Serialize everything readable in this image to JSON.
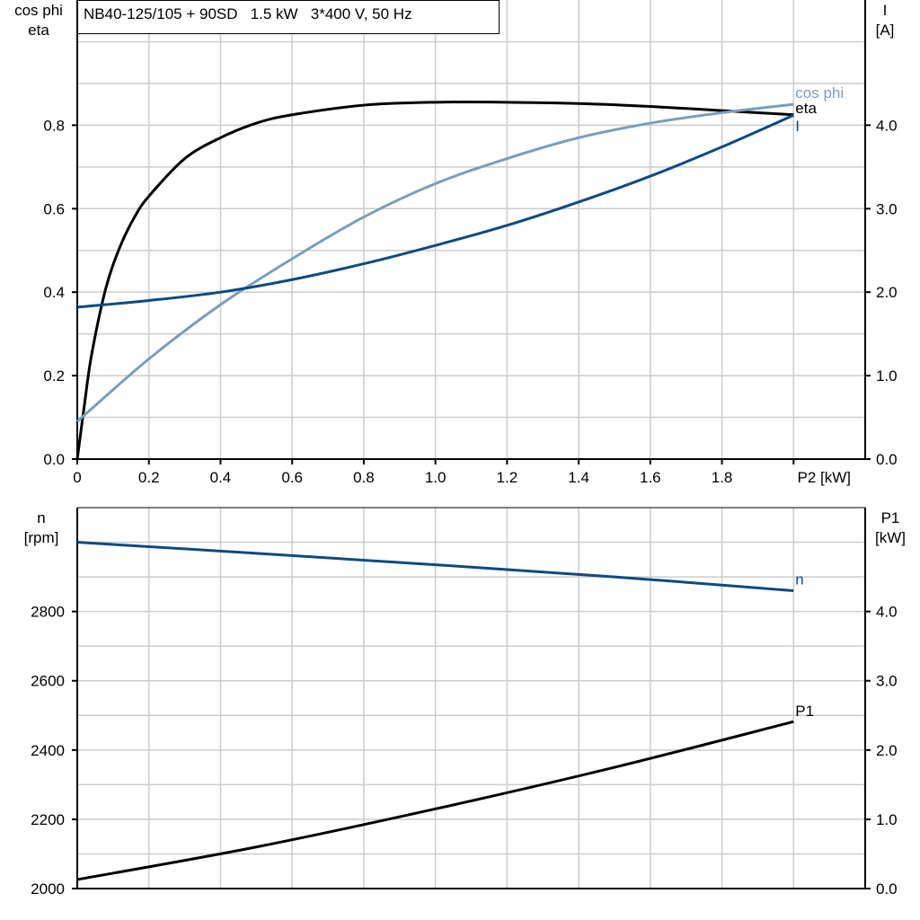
{
  "title": "NB40-125/105 + 90SD   1.5 kW   3*400 V, 50 Hz",
  "colors": {
    "eta": "#000000",
    "cos_phi": "#7b9dbd",
    "I": "#0f4a80",
    "n": "#0f4a80",
    "P1": "#000000",
    "grid": "#cccccc"
  },
  "chart_data": [
    {
      "type": "line",
      "xlabel": "P2 [kW]",
      "xlim": [
        0,
        2.2
      ],
      "xticks": [
        "0",
        "0.2",
        "0.4",
        "0.6",
        "0.8",
        "1.0",
        "1.2",
        "1.4",
        "1.6",
        "1.8"
      ],
      "ylabel_left": [
        "cos phi",
        "eta"
      ],
      "ylim_left": [
        0,
        1.1
      ],
      "yticks_left": [
        "0.0",
        "0.2",
        "0.4",
        "0.6",
        "0.8"
      ],
      "ylabel_right": [
        "I",
        "[A]"
      ],
      "ylim_right": [
        0,
        5.5
      ],
      "yticks_right": [
        "0.0",
        "1.0",
        "2.0",
        "3.0",
        "4.0"
      ],
      "grid": true,
      "series": [
        {
          "name": "eta",
          "axis": "left",
          "x": [
            0,
            0.02,
            0.04,
            0.08,
            0.12,
            0.16,
            0.2,
            0.3,
            0.4,
            0.5,
            0.6,
            0.8,
            1.0,
            1.2,
            1.4,
            1.6,
            1.8,
            2.0
          ],
          "y": [
            0,
            0.13,
            0.25,
            0.41,
            0.51,
            0.58,
            0.63,
            0.72,
            0.77,
            0.805,
            0.825,
            0.848,
            0.855,
            0.855,
            0.852,
            0.845,
            0.835,
            0.825
          ]
        },
        {
          "name": "cos phi",
          "axis": "left",
          "x": [
            0,
            0.2,
            0.4,
            0.6,
            0.8,
            1.0,
            1.2,
            1.4,
            1.6,
            1.8,
            2.0
          ],
          "y": [
            0.09,
            0.24,
            0.37,
            0.48,
            0.58,
            0.66,
            0.72,
            0.77,
            0.805,
            0.83,
            0.85
          ]
        },
        {
          "name": "I",
          "axis": "right",
          "x": [
            0,
            0.2,
            0.4,
            0.6,
            0.8,
            1.0,
            1.2,
            1.4,
            1.6,
            1.8,
            2.0
          ],
          "y": [
            1.82,
            1.9,
            2.0,
            2.15,
            2.34,
            2.56,
            2.8,
            3.08,
            3.39,
            3.74,
            4.12
          ]
        }
      ]
    },
    {
      "type": "line",
      "xlim": [
        0,
        2.2
      ],
      "ylabel_left": [
        "n",
        "[rpm]"
      ],
      "ylim_left": [
        2000,
        3100
      ],
      "yticks_left": [
        "2000",
        "2200",
        "2400",
        "2600",
        "2800"
      ],
      "ylabel_right": [
        "P1",
        "[kW]"
      ],
      "ylim_right": [
        0,
        5.5
      ],
      "yticks_right": [
        "0.0",
        "1.0",
        "2.0",
        "3.0",
        "4.0"
      ],
      "grid": true,
      "series": [
        {
          "name": "n",
          "axis": "left",
          "x": [
            0,
            0.5,
            1.0,
            1.5,
            2.0
          ],
          "y": [
            3000,
            2968,
            2935,
            2900,
            2860
          ]
        },
        {
          "name": "P1",
          "axis": "right",
          "x": [
            0,
            0.5,
            1.0,
            1.5,
            2.0
          ],
          "y": [
            0.13,
            0.6,
            1.15,
            1.75,
            2.41
          ]
        }
      ]
    }
  ]
}
